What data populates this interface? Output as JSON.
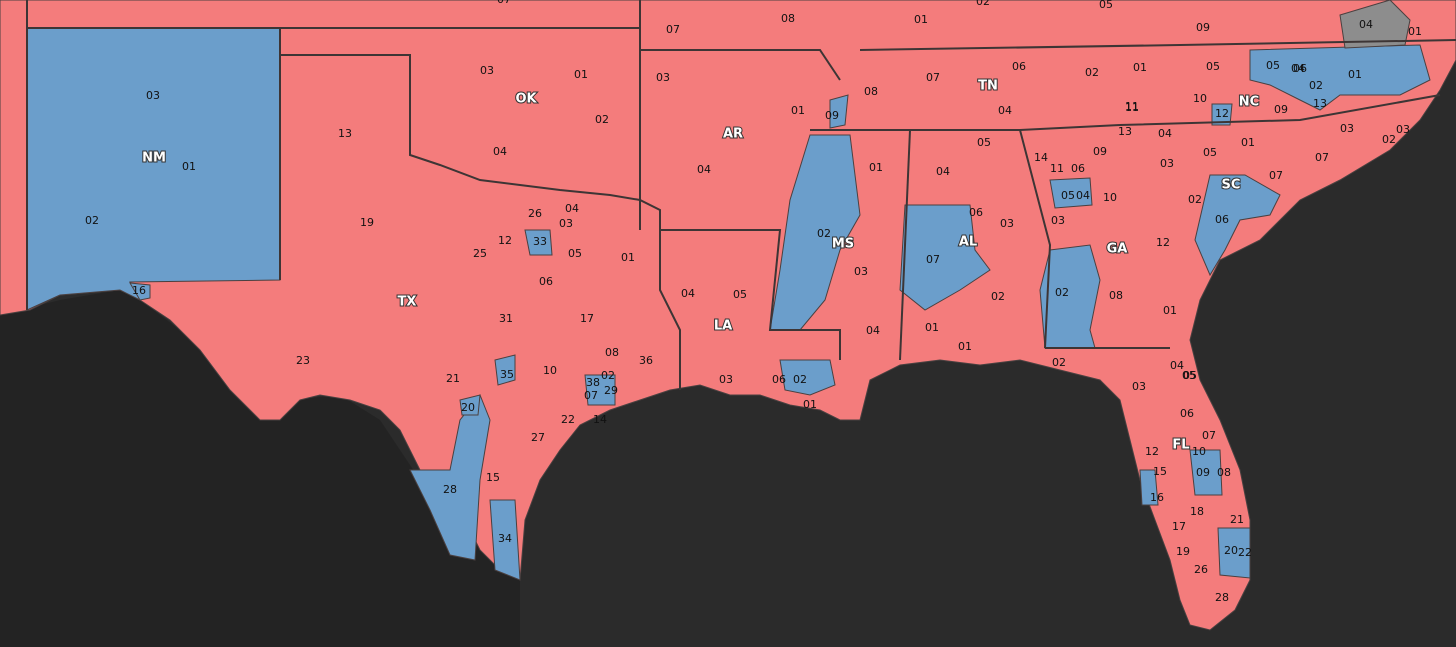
{
  "colors": {
    "republican": "#F47C7C",
    "democrat": "#6B9ECB",
    "vacant": "#8D8D8D",
    "background": "#2B2B2B",
    "border": "#4A4040"
  },
  "state_labels": [
    "NM",
    "OK",
    "AR",
    "TN",
    "NC",
    "SC",
    "GA",
    "AL",
    "MS",
    "LA",
    "TX",
    "FL"
  ],
  "district_labels": [
    "03",
    "01",
    "02",
    "03",
    "01",
    "02",
    "04",
    "13",
    "19",
    "12",
    "26",
    "04",
    "03",
    "33",
    "25",
    "05",
    "01",
    "06",
    "TX",
    "31",
    "17",
    "23",
    "35",
    "10",
    "21",
    "08",
    "38",
    "02",
    "29",
    "07",
    "36",
    "20",
    "22",
    "14",
    "27",
    "15",
    "28",
    "34",
    "16",
    "07",
    "08",
    "03",
    "01",
    "04",
    "04",
    "05",
    "03",
    "06",
    "02",
    "01",
    "09",
    "02",
    "01",
    "03",
    "04",
    "01",
    "07",
    "05",
    "06",
    "04",
    "02",
    "03",
    "07",
    "08",
    "06",
    "04",
    "02",
    "01",
    "11",
    "10",
    "12",
    "13",
    "09",
    "01",
    "03",
    "02",
    "05",
    "04",
    "03",
    "05",
    "01",
    "02",
    "06",
    "07",
    "04",
    "05",
    "06",
    "03",
    "07",
    "02",
    "01",
    "14",
    "11",
    "06",
    "05",
    "04",
    "09",
    "03",
    "10",
    "13",
    "12",
    "02",
    "08",
    "01",
    "02",
    "03",
    "04",
    "05",
    "06",
    "07",
    "01",
    "09",
    "12",
    "10",
    "11",
    "15",
    "16",
    "17",
    "18",
    "19",
    "20",
    "21",
    "22",
    "26",
    "28",
    "08",
    "05",
    "02",
    "05",
    "04",
    "09",
    "01",
    "07"
  ]
}
